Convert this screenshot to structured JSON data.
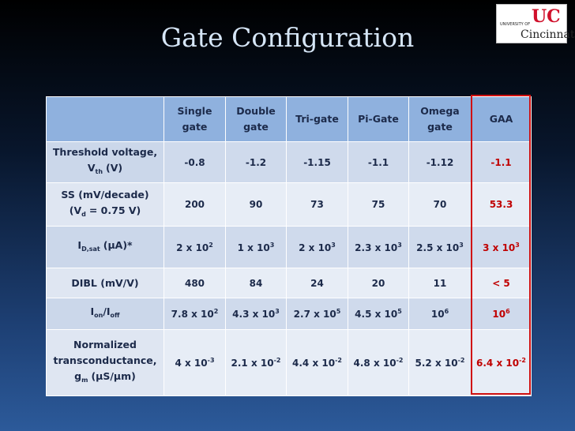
{
  "header": {
    "title": "Gate Configuration",
    "logo": {
      "line1": "UNIVERSITY OF",
      "line2": "Cincinnati"
    }
  },
  "table": {
    "columns": [
      "Single gate",
      "Double gate",
      "Tri-gate",
      "Pi-Gate",
      "Omega gate",
      "GAA"
    ],
    "rows": [
      {
        "label": [
          "Threshold voltage,",
          "V",
          "th",
          "(V)"
        ],
        "cells": [
          "-0.8",
          "-1.2",
          "-1.15",
          "-1.1",
          "-1.12",
          "-1.1"
        ]
      },
      {
        "label": [
          "SS (mV/decade)",
          "(V",
          "d",
          "= 0.75 V)"
        ],
        "cells": [
          "200",
          "90",
          "73",
          "75",
          "70",
          "53.3"
        ]
      },
      {
        "label": [
          "I",
          "D,sat",
          "(µA)*"
        ],
        "cells": [
          [
            "2 x 10",
            "2"
          ],
          [
            "1 x 10",
            "3"
          ],
          [
            "2 x 10",
            "3"
          ],
          [
            "2.3 x 10",
            "3"
          ],
          [
            "2.5 x 10",
            "3"
          ],
          [
            "3 x 10",
            "3"
          ]
        ]
      },
      {
        "label": [
          "DIBL (mV/V)"
        ],
        "cells": [
          "480",
          "84",
          "24",
          "20",
          "11",
          "< 5"
        ]
      },
      {
        "label": [
          "I",
          "on",
          "/I",
          "off"
        ],
        "cells": [
          [
            "7.8 x 10",
            "2"
          ],
          [
            "4.3 x 10",
            "3"
          ],
          [
            "2.7 x 10",
            "5"
          ],
          [
            "4.5 x 10",
            "5"
          ],
          [
            "10",
            "6"
          ],
          [
            "10",
            "6"
          ]
        ]
      },
      {
        "label": [
          "Normalized",
          "transconductance,",
          "g",
          "m",
          "(µS/µm)"
        ],
        "cells": [
          [
            "4 x 10",
            "-3"
          ],
          [
            "2.1 x 10",
            "-2"
          ],
          [
            "4.4 x 10",
            "-2"
          ],
          [
            "4.8 x 10",
            "-2"
          ],
          [
            "5.2 x 10",
            "-2"
          ],
          [
            "6.4 x 10",
            "-2"
          ]
        ]
      }
    ]
  }
}
